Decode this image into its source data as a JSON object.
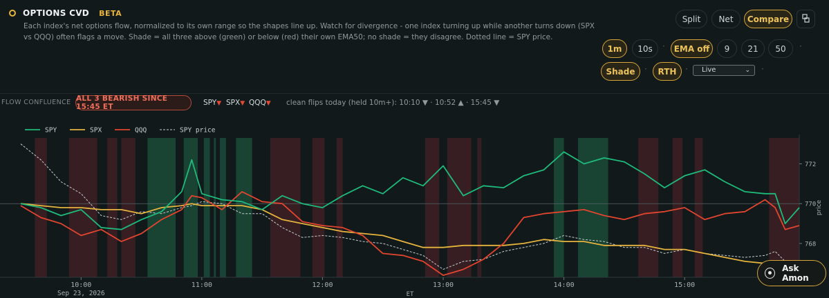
{
  "header": {
    "title": "OPTIONS CVD",
    "badge": "BETA",
    "description": "Each index's net options flow, normalized to its own range so the shapes line up. Watch for divergence - one index turning up while another turns down (SPX vs QQQ) often flags a move. Shade = all three above (green) or below (red) their own EMA50; no shade = they disagree. Dotted line = SPY price."
  },
  "controls": {
    "split": "Split",
    "net": "Net",
    "compare": "Compare",
    "tf_1m": "1m",
    "tf_10s": "10s",
    "ema_off": "EMA off",
    "ema_9": "9",
    "ema_21": "21",
    "ema_50": "50",
    "shade": "Shade",
    "rth": "RTH",
    "mode_select": "Live",
    "active": [
      "Compare",
      "1m",
      "EMA off",
      "Shade",
      "RTH"
    ]
  },
  "confluence": {
    "label": "FLOW CONFLUENCE",
    "status": "ALL 3 BEARISH SINCE 15:45 ET",
    "spy": "SPY",
    "spx": "SPX",
    "qqq": "QQQ",
    "flips_text": "clean flips today (held 10m+): 10:10 ▼ · 10:52 ▲ · 15:45 ▼"
  },
  "ask_button": "Ask Amon",
  "chart_data": {
    "type": "line",
    "legend": [
      "SPY",
      "SPX",
      "QQQ",
      "SPY price"
    ],
    "legend_placement": "top-left",
    "colors": {
      "SPY": "#1fbb7c",
      "SPX": "#e7b43d",
      "QQQ": "#e2452f",
      "SPY price": "#c8cfd2",
      "bull_shade": "#1f5a40",
      "bear_shade": "#4b2226"
    },
    "x_ticks": [
      "10:00",
      "11:00",
      "12:00",
      "13:00",
      "14:00",
      "15:00"
    ],
    "x_date_label": "Sep 23, 2026",
    "xlabel": "ET",
    "ylabel": "price",
    "y_ticks": [
      768,
      770,
      772
    ],
    "ylim": [
      766.3,
      773.3
    ],
    "reference_line": 770,
    "x_range": [
      "09:30",
      "15:57"
    ],
    "shades": [
      {
        "type": "bear",
        "from": "09:37",
        "to": "09:43"
      },
      {
        "type": "bear",
        "from": "09:54",
        "to": "10:08"
      },
      {
        "type": "bear",
        "from": "10:13",
        "to": "10:18"
      },
      {
        "type": "bear",
        "from": "10:20",
        "to": "10:27"
      },
      {
        "type": "bull",
        "from": "10:33",
        "to": "10:47"
      },
      {
        "type": "bull",
        "from": "10:51",
        "to": "10:58"
      },
      {
        "type": "bull",
        "from": "11:01",
        "to": "11:04"
      },
      {
        "type": "bull",
        "from": "11:06",
        "to": "11:07"
      },
      {
        "type": "bull",
        "from": "11:09",
        "to": "11:12"
      },
      {
        "type": "bull",
        "from": "11:17",
        "to": "11:25"
      },
      {
        "type": "bear",
        "from": "11:34",
        "to": "11:49"
      },
      {
        "type": "bear",
        "from": "11:55",
        "to": "12:01"
      },
      {
        "type": "bear",
        "from": "12:07",
        "to": "12:10"
      },
      {
        "type": "bear",
        "from": "12:51",
        "to": "12:58"
      },
      {
        "type": "bear",
        "from": "13:02",
        "to": "13:14"
      },
      {
        "type": "bear",
        "from": "13:17",
        "to": "13:19"
      },
      {
        "type": "bull",
        "from": "13:55",
        "to": "14:00"
      },
      {
        "type": "bull",
        "from": "14:07",
        "to": "14:22"
      },
      {
        "type": "bear",
        "from": "14:37",
        "to": "14:47"
      },
      {
        "type": "bear",
        "from": "14:54",
        "to": "14:59"
      },
      {
        "type": "bear",
        "from": "15:05",
        "to": "15:09"
      },
      {
        "type": "bear",
        "from": "15:42",
        "to": "15:57"
      }
    ],
    "x": [
      "09:30",
      "09:40",
      "09:50",
      "10:00",
      "10:10",
      "10:20",
      "10:30",
      "10:40",
      "10:50",
      "10:55",
      "11:00",
      "11:10",
      "11:20",
      "11:30",
      "11:40",
      "11:50",
      "12:00",
      "12:10",
      "12:20",
      "12:30",
      "12:40",
      "12:50",
      "13:00",
      "13:10",
      "13:20",
      "13:30",
      "13:40",
      "13:50",
      "14:00",
      "14:10",
      "14:20",
      "14:30",
      "14:40",
      "14:50",
      "15:00",
      "15:10",
      "15:20",
      "15:30",
      "15:40",
      "15:45",
      "15:50",
      "15:57"
    ],
    "series": [
      {
        "name": "SPY",
        "values": [
          770.0,
          769.8,
          769.4,
          769.7,
          768.8,
          768.7,
          769.2,
          769.6,
          770.6,
          772.2,
          770.5,
          770.2,
          770.1,
          769.7,
          770.4,
          770.0,
          769.8,
          770.4,
          770.9,
          770.5,
          771.3,
          770.9,
          771.9,
          770.4,
          770.9,
          770.8,
          771.4,
          771.7,
          772.6,
          772.0,
          772.3,
          772.1,
          771.5,
          770.8,
          771.4,
          771.7,
          771.1,
          770.6,
          770.5,
          770.5,
          769.0,
          769.8
        ]
      },
      {
        "name": "SPX",
        "values": [
          770.0,
          769.9,
          769.8,
          769.8,
          769.7,
          769.7,
          769.5,
          769.8,
          769.9,
          770.0,
          769.9,
          769.9,
          769.9,
          769.7,
          769.2,
          769.0,
          768.8,
          768.6,
          768.5,
          768.4,
          768.1,
          767.8,
          767.8,
          767.9,
          767.9,
          767.9,
          768.0,
          768.2,
          768.1,
          768.1,
          767.9,
          767.9,
          767.9,
          767.7,
          767.7,
          767.5,
          767.3,
          767.1,
          767.0,
          767.0,
          767.0,
          766.9
        ]
      },
      {
        "name": "QQQ",
        "values": [
          769.9,
          769.3,
          769.0,
          768.4,
          768.7,
          768.1,
          768.5,
          769.2,
          769.7,
          770.4,
          770.3,
          769.7,
          770.6,
          770.1,
          770.0,
          769.1,
          768.9,
          768.8,
          768.4,
          767.5,
          767.4,
          767.1,
          766.4,
          766.7,
          767.2,
          768.0,
          769.3,
          769.5,
          769.6,
          769.7,
          769.4,
          769.2,
          769.5,
          769.6,
          769.8,
          769.2,
          769.5,
          769.6,
          770.2,
          769.8,
          768.7,
          768.9
        ]
      },
      {
        "name": "SPY price",
        "values": [
          773.0,
          772.2,
          771.1,
          770.5,
          769.4,
          769.2,
          769.6,
          769.5,
          769.8,
          769.9,
          770.1,
          770.0,
          769.5,
          769.5,
          768.8,
          768.3,
          768.4,
          768.3,
          768.1,
          768.0,
          767.7,
          767.4,
          766.7,
          767.1,
          767.2,
          767.6,
          767.8,
          768.0,
          768.4,
          768.2,
          768.1,
          767.8,
          767.8,
          767.5,
          767.7,
          767.5,
          767.4,
          767.3,
          767.4,
          767.6,
          767.1,
          766.8
        ]
      }
    ]
  }
}
